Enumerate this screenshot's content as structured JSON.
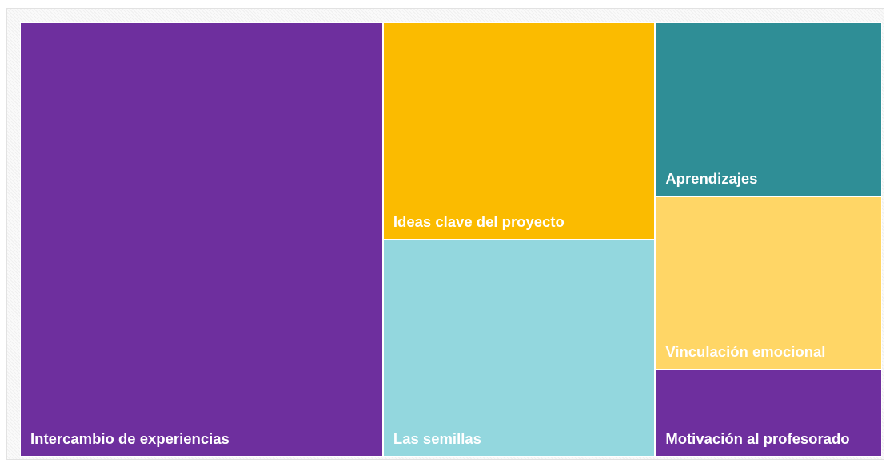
{
  "chart_data": {
    "type": "treemap",
    "categories": [
      "Intercambio de experiencias",
      "Ideas clave del proyecto",
      "Las semillas",
      "Aprendizajes",
      "Vinculación emocional",
      "Motivación al profesorado"
    ],
    "values": [
      8,
      3,
      3,
      2,
      2,
      1
    ],
    "colors": [
      "#6e2f9e",
      "#fbbb00",
      "#93d7de",
      "#2f8e96",
      "#ffd666",
      "#6e2f9e"
    ]
  }
}
